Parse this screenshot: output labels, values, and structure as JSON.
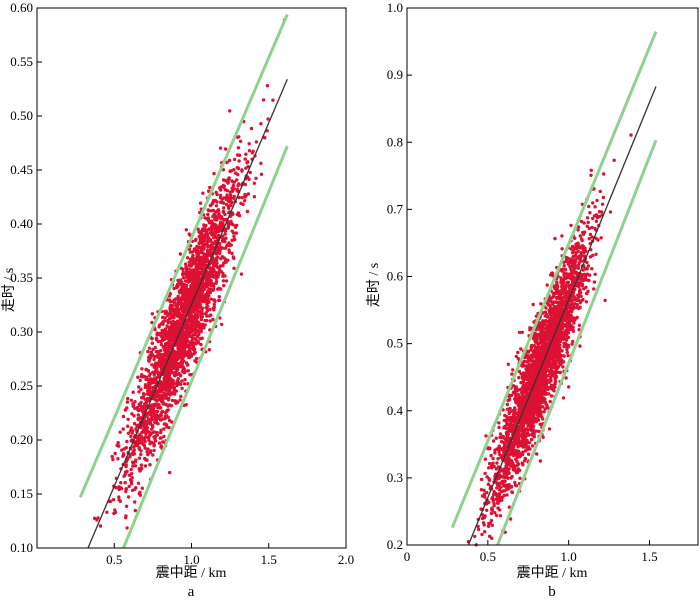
{
  "chart_data": [
    {
      "type": "scatter",
      "panel_label": "a",
      "xlabel": "震中距 / km",
      "ylabel": "走时 / s",
      "xlim": [
        0.0,
        2.0
      ],
      "ylim": [
        0.1,
        0.6
      ],
      "x_ticks": [
        "0.5",
        "1.0",
        "1.5",
        "2.0"
      ],
      "y_ticks": [
        "0.10",
        "0.15",
        "0.20",
        "0.25",
        "0.30",
        "0.35",
        "0.40",
        "0.45",
        "0.50",
        "0.55",
        "0.60"
      ],
      "fit_line": {
        "x": [
          0.33,
          1.62
        ],
        "y": [
          0.1,
          0.534
        ],
        "color": "#333333"
      },
      "bound_lines": [
        {
          "x": [
            0.28,
            1.62
          ],
          "y": [
            0.147,
            0.594
          ],
          "color": "#8fd18f"
        },
        {
          "x": [
            0.56,
            1.62
          ],
          "y": [
            0.1,
            0.472
          ],
          "color": "#8fd18f"
        }
      ],
      "points": {
        "count": 2600,
        "x_center": 0.95,
        "x_spread": 0.18,
        "noise": 0.028,
        "color": "#dd1133"
      }
    },
    {
      "type": "scatter",
      "panel_label": "b",
      "xlabel": "震中距 / km",
      "ylabel": "走时 / s",
      "xlim": [
        0.0,
        1.8
      ],
      "ylim": [
        0.2,
        1.0
      ],
      "x_ticks": [
        "0",
        "0.5",
        "1.0",
        "1.5"
      ],
      "y_ticks": [
        "0.2",
        "0.3",
        "0.4",
        "0.5",
        "0.6",
        "0.7",
        "0.8",
        "0.9",
        "1.0"
      ],
      "fit_line": {
        "x": [
          0.38,
          1.54
        ],
        "y": [
          0.2,
          0.883
        ],
        "color": "#333333"
      },
      "bound_lines": [
        {
          "x": [
            0.28,
            1.54
          ],
          "y": [
            0.226,
            0.965
          ],
          "color": "#8fd18f"
        },
        {
          "x": [
            0.56,
            1.54
          ],
          "y": [
            0.2,
            0.803
          ],
          "color": "#8fd18f"
        }
      ],
      "points": {
        "count": 2600,
        "x_center": 0.82,
        "x_spread": 0.15,
        "noise": 0.04,
        "color": "#dd1133"
      }
    }
  ]
}
